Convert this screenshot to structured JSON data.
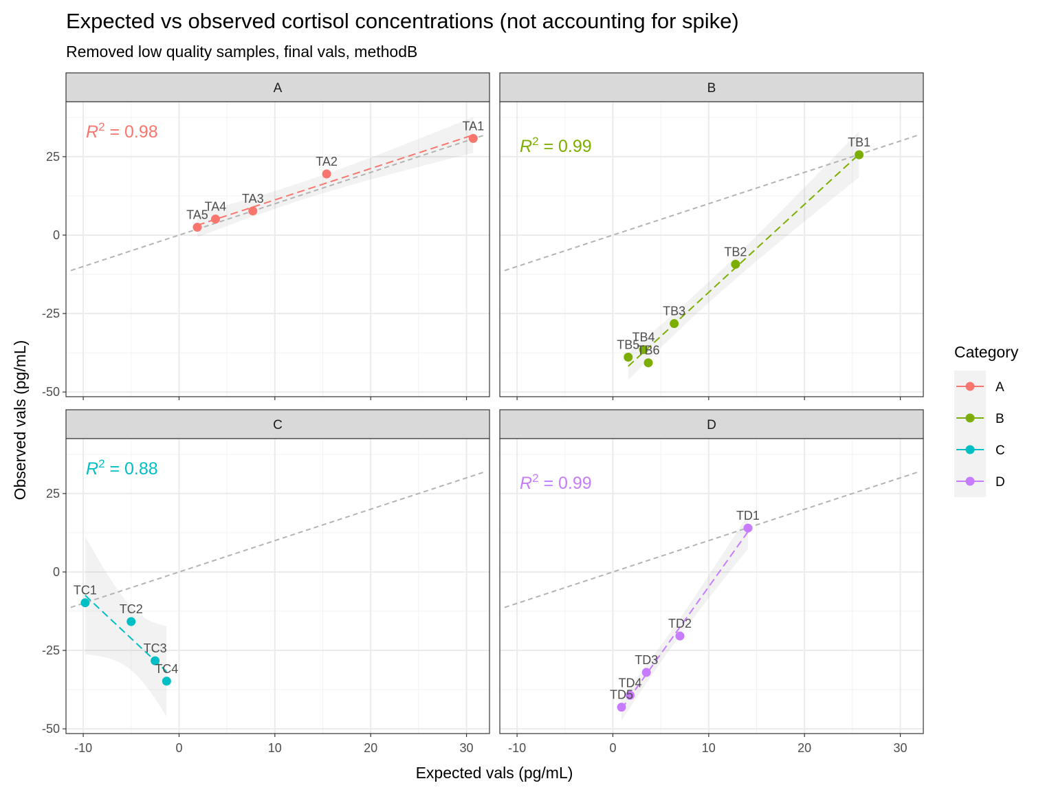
{
  "chart_data": {
    "type": "scatter",
    "title": "Expected vs observed cortisol concentrations (not accounting for spike)",
    "subtitle": "Removed low quality samples, final vals, methodB",
    "xlabel": "Expected vals (pg/mL)",
    "ylabel": "Observed vals (pg/mL)",
    "xlim": [
      -11.8,
      32.4
    ],
    "ylim": [
      -51.5,
      42.5
    ],
    "x_ticks": [
      -10,
      0,
      10,
      20,
      30
    ],
    "y_ticks": [
      -50,
      -25,
      0,
      25
    ],
    "grid": true,
    "legend": {
      "title": "Category",
      "position": "right",
      "entries": [
        "A",
        "B",
        "C",
        "D"
      ]
    },
    "reference_line": {
      "slope": 1,
      "intercept": 0,
      "color": "#b3b3b3",
      "style": "dashed"
    },
    "panels": [
      {
        "name": "A",
        "color": "#F8766D",
        "r2_label": "0.98",
        "points": [
          {
            "label": "TA1",
            "x": 30.7,
            "y": 30.8
          },
          {
            "label": "TA2",
            "x": 15.4,
            "y": 19.5
          },
          {
            "label": "TA3",
            "x": 7.7,
            "y": 7.7
          },
          {
            "label": "TA4",
            "x": 3.8,
            "y": 5.1
          },
          {
            "label": "TA5",
            "x": 1.9,
            "y": 2.5
          }
        ]
      },
      {
        "name": "B",
        "color": "#7CAE00",
        "r2_label": "0.99",
        "points": [
          {
            "label": "TB1",
            "x": 25.7,
            "y": 25.6
          },
          {
            "label": "TB2",
            "x": 12.8,
            "y": -9.3
          },
          {
            "label": "TB3",
            "x": 6.4,
            "y": -28.2
          },
          {
            "label": "TB4",
            "x": 3.2,
            "y": -36.5
          },
          {
            "label": "TB5",
            "x": 1.6,
            "y": -38.9
          },
          {
            "label": "TB6",
            "x": 3.7,
            "y": -40.7
          }
        ]
      },
      {
        "name": "C",
        "color": "#00BFC4",
        "r2_label": "0.88",
        "points": [
          {
            "label": "TC1",
            "x": -9.8,
            "y": -9.8
          },
          {
            "label": "TC2",
            "x": -5.0,
            "y": -15.8
          },
          {
            "label": "TC3",
            "x": -2.5,
            "y": -28.3
          },
          {
            "label": "TC4",
            "x": -1.3,
            "y": -34.8
          }
        ]
      },
      {
        "name": "D",
        "color": "#C77CFF",
        "r2_label": "0.99",
        "points": [
          {
            "label": "TD1",
            "x": 14.1,
            "y": 14.0
          },
          {
            "label": "TD2",
            "x": 7.0,
            "y": -20.4
          },
          {
            "label": "TD3",
            "x": 3.5,
            "y": -32.0
          },
          {
            "label": "TD4",
            "x": 1.8,
            "y": -39.3
          },
          {
            "label": "TD5",
            "x": 0.9,
            "y": -43.1
          }
        ]
      }
    ]
  }
}
